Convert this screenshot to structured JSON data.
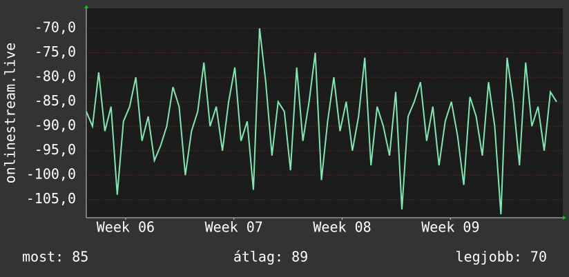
{
  "chart_data": {
    "type": "line",
    "y_label": "onlinestream.live",
    "x": [
      0,
      0.4,
      0.8,
      1.2,
      1.6,
      2,
      2.4,
      2.8,
      3.2,
      3.6,
      4,
      4.4,
      4.8,
      5.2,
      5.6,
      6,
      6.4,
      6.8,
      7.2,
      7.6,
      8,
      8.4,
      8.8,
      9.2,
      9.6,
      10,
      10.4,
      10.8,
      11.2,
      11.6,
      12,
      12.4,
      12.8,
      13.2,
      13.6,
      14,
      14.4,
      14.8,
      15.2,
      15.6,
      16,
      16.4,
      16.8,
      17.2,
      17.6,
      18,
      18.4,
      18.8,
      19.2,
      19.6,
      20,
      20.4,
      20.8,
      21.2,
      21.6,
      22,
      22.4,
      22.8,
      23.2,
      23.6,
      24,
      24.4,
      24.8,
      25.2,
      25.6,
      26,
      26.4,
      26.8,
      27.2,
      27.6,
      28,
      28.4,
      28.8,
      29.2,
      29.6,
      30,
      30.4
    ],
    "series": [
      {
        "color": "#7fe8b0",
        "values": [
          -87,
          -90,
          -79,
          -91,
          -86,
          -104,
          -89,
          -86,
          -80,
          -93,
          -88,
          -97,
          -94,
          -90,
          -82,
          -86,
          -100,
          -91,
          -87,
          -77,
          -90,
          -86,
          -95,
          -85,
          -78,
          -93,
          -89,
          -103,
          -70,
          -81,
          -96,
          -85,
          -87,
          -99,
          -78,
          -93,
          -85,
          -75,
          -101,
          -89,
          -80,
          -91,
          -85,
          -95,
          -88,
          -76,
          -98,
          -86,
          -90,
          -96,
          -83,
          -107,
          -88,
          -85,
          -81,
          -93,
          -86,
          -98,
          -89,
          -85,
          -92,
          -102,
          -84,
          -88,
          -96,
          -81,
          -90,
          -108,
          -76,
          -85,
          -98,
          -77,
          -90,
          -86,
          -95,
          -83,
          -85
        ]
      }
    ],
    "xlim": [
      0,
      30.8
    ],
    "xticks": [
      {
        "value": 2.54,
        "label": "Week 06"
      },
      {
        "value": 9.54,
        "label": "Week 07"
      },
      {
        "value": 16.54,
        "label": "Week 08"
      },
      {
        "value": 23.54,
        "label": "Week 09"
      }
    ],
    "ylim": [
      -108.7,
      -65.9
    ],
    "yticks": [
      {
        "value": -70,
        "label": "-70,0"
      },
      {
        "value": -75,
        "label": "-75,0"
      },
      {
        "value": -80,
        "label": "-80,0"
      },
      {
        "value": -85,
        "label": "-85,0"
      },
      {
        "value": -90,
        "label": "-90,0"
      },
      {
        "value": -95,
        "label": "-95,0"
      },
      {
        "value": -100,
        "label": "-100,0"
      },
      {
        "value": -105,
        "label": "-105,0"
      }
    ],
    "grid": true,
    "footer": [
      "most: 85",
      "átlag: 89",
      "legjobb: 70"
    ]
  }
}
